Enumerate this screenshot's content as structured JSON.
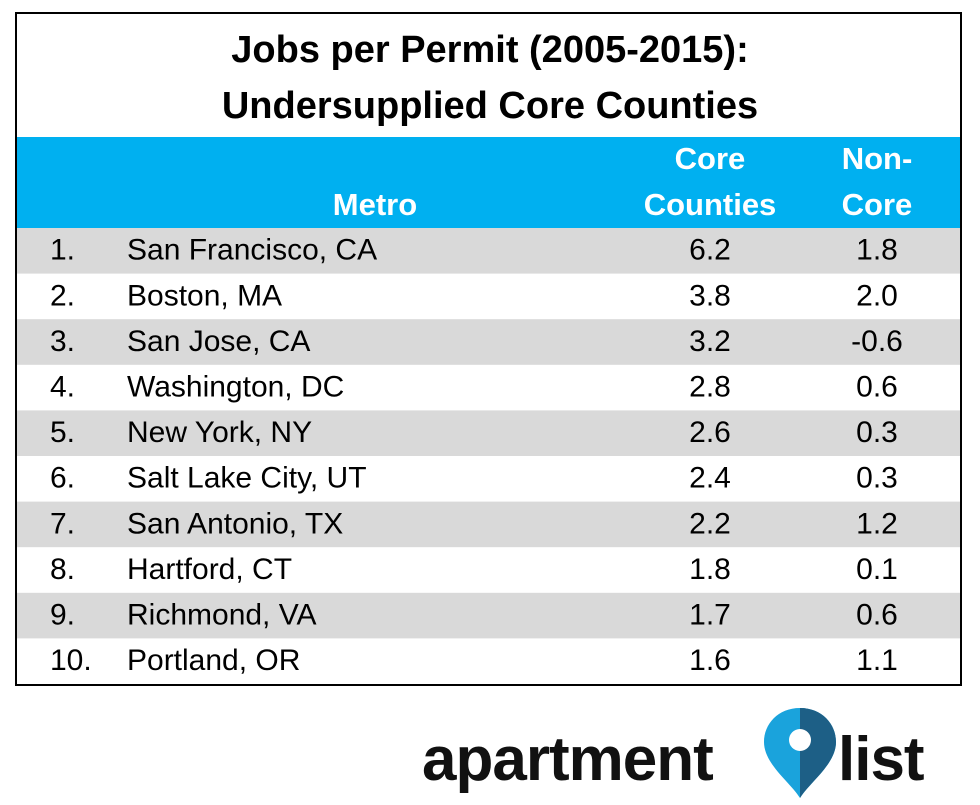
{
  "header": {
    "title": [
      "Jobs per Permit (2005-2015):",
      "Undersupplied Core Counties"
    ]
  },
  "table": {
    "columns": [
      [
        "Metro"
      ],
      [
        "Core",
        "Counties"
      ],
      [
        "Non-",
        "Core"
      ]
    ],
    "rows": [
      [
        "1.",
        "San Francisco, CA",
        "6.2",
        "1.8"
      ],
      [
        "2.",
        "Boston, MA",
        "3.8",
        "2.0"
      ],
      [
        "3.",
        "San Jose, CA",
        "3.2",
        "-0.6"
      ],
      [
        "4.",
        "Washington, DC",
        "2.8",
        "0.6"
      ],
      [
        "5.",
        "New York, NY",
        "2.6",
        "0.3"
      ],
      [
        "6.",
        "Salt Lake City, UT",
        "2.4",
        "0.3"
      ],
      [
        "7.",
        "San Antonio, TX",
        "2.2",
        "1.2"
      ],
      [
        "8.",
        "Hartford, CT",
        "1.8",
        "0.1"
      ],
      [
        "9.",
        "Richmond, VA",
        "1.7",
        "0.6"
      ],
      [
        "10.",
        "Portland, OR",
        "1.6",
        "1.1"
      ]
    ]
  },
  "logo": {
    "text": [
      "apartment",
      "list"
    ]
  }
}
